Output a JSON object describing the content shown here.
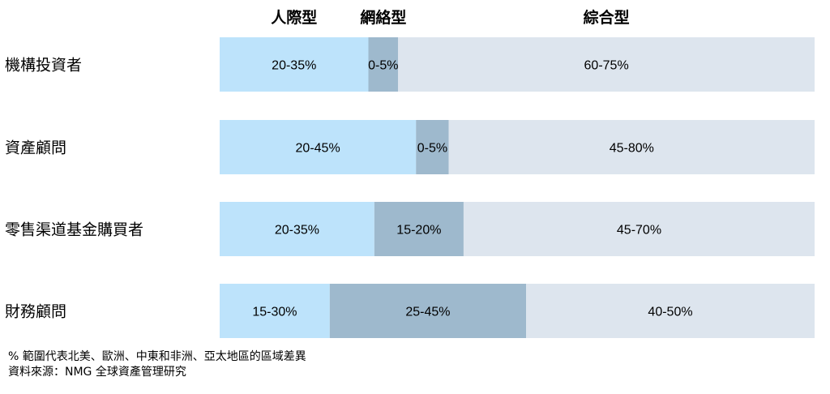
{
  "chart_data": {
    "type": "bar",
    "orientation": "horizontal",
    "stacked": true,
    "segment_headers": [
      "人際型",
      "網絡型",
      "綜合型"
    ],
    "categories": [
      "機構投資者",
      "資產顧問",
      "零售渠道基金購買者",
      "財務顧問"
    ],
    "series": [
      {
        "name": "人際型",
        "color": "#bde3fb",
        "values": [
          25,
          33,
          26,
          18.5
        ],
        "labels": [
          "20-35%",
          "20-45%",
          "20-35%",
          "15-30%"
        ]
      },
      {
        "name": "網絡型",
        "color": "#9eb9cd",
        "values": [
          5,
          5.5,
          15,
          33
        ],
        "labels": [
          "0-5%",
          "0-5%",
          "15-20%",
          "25-45%"
        ]
      },
      {
        "name": "綜合型",
        "color": "#dde5ee",
        "values": [
          70,
          61.5,
          59,
          48.5
        ],
        "labels": [
          "60-75%",
          "45-80%",
          "45-70%",
          "40-50%"
        ]
      }
    ],
    "xlim": [
      0,
      100
    ],
    "grid": false,
    "legend": "none"
  },
  "notes": [
    "% 範圍代表北美、歐洲、中東和非洲、亞太地區的區域差異",
    "資料來源：NMG 全球資產管理研究"
  ]
}
